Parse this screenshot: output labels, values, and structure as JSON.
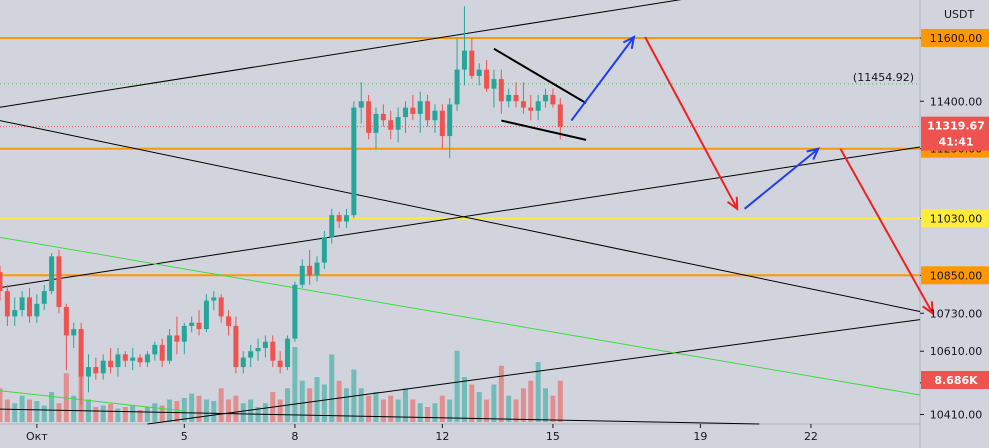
{
  "chart_data": {
    "type": "candlestick",
    "currency": "USDT",
    "y_axis": {
      "range": [
        10380,
        11720
      ],
      "ticks": [
        {
          "value": 11600,
          "label": "11600.00",
          "boxed": true,
          "color": "#ff9800"
        },
        {
          "value": 11400,
          "label": "11400.00",
          "boxed": false
        },
        {
          "value": 11250,
          "label": "11250.00",
          "boxed": true,
          "color": "#ff9800"
        },
        {
          "value": 11030,
          "label": "11030.00",
          "boxed": true,
          "color": "#ffeb3b"
        },
        {
          "value": 10850,
          "label": "10850.00",
          "boxed": true,
          "color": "#ff9800"
        },
        {
          "value": 10730,
          "label": "10730.00",
          "boxed": false
        },
        {
          "value": 10610,
          "label": "10610.00",
          "boxed": false
        },
        {
          "value": 10510,
          "label": "10510.00",
          "boxed": false
        },
        {
          "value": 10410,
          "label": "10410.00",
          "boxed": false
        }
      ],
      "current_price": {
        "value": 11319.67,
        "label": "11319.67",
        "countdown": "41:41"
      },
      "volume_label": "8.686K",
      "dotted_level": {
        "value": 11454.92,
        "label": "(11454.92)"
      }
    },
    "x_axis": {
      "range": [
        0,
        274
      ],
      "ticks": [
        {
          "label": "Окт",
          "x": 10
        },
        {
          "label": "5",
          "x": 50
        },
        {
          "label": "8",
          "x": 80
        },
        {
          "label": "12",
          "x": 120
        },
        {
          "label": "15",
          "x": 150
        },
        {
          "label": "19",
          "x": 190
        },
        {
          "label": "22",
          "x": 220
        }
      ]
    },
    "horizontal_levels": [
      {
        "price": 11600,
        "color": "#ff9800"
      },
      {
        "price": 11250,
        "color": "#ff9800"
      },
      {
        "price": 11030,
        "color": "#ffeb3b"
      },
      {
        "price": 10850,
        "color": "#ff9800"
      }
    ],
    "trend_lines": [
      {
        "points": [
          [
            0,
            11381
          ],
          [
            190,
            11731
          ]
        ],
        "color": "#000000"
      },
      {
        "points": [
          [
            0,
            10811
          ],
          [
            256,
            11267
          ]
        ],
        "color": "#000000"
      },
      {
        "points": [
          [
            0,
            11339
          ],
          [
            256,
            10720
          ]
        ],
        "color": "#000000"
      },
      {
        "points": [
          [
            40,
            10380
          ],
          [
            256,
            10720
          ]
        ],
        "color": "#000000"
      },
      {
        "points": [
          [
            0,
            10427
          ],
          [
            206,
            10380
          ]
        ],
        "color": "#000000"
      },
      {
        "points": [
          [
            0,
            10970
          ],
          [
            256,
            10459
          ]
        ],
        "color": "#3cdc3c"
      },
      {
        "points": [
          [
            0,
            10485
          ],
          [
            50,
            10421
          ]
        ],
        "color": "#3cdc3c"
      }
    ],
    "wedge": [
      {
        "points": [
          [
            134,
            11566
          ],
          [
            159,
            11394
          ]
        ]
      },
      {
        "points": [
          [
            136,
            11339
          ],
          [
            159,
            11278
          ]
        ]
      }
    ],
    "projections": [
      {
        "points": [
          [
            155,
            11339
          ],
          [
            172,
            11603
          ]
        ],
        "color": "#1f3cf2"
      },
      {
        "points": [
          [
            175,
            11603
          ],
          [
            200,
            11060
          ]
        ],
        "color": "#ef2121"
      },
      {
        "points": [
          [
            202,
            11060
          ],
          [
            222,
            11250
          ]
        ],
        "color": "#1f3cf2"
      },
      {
        "points": [
          [
            228,
            11250
          ],
          [
            253,
            10730
          ]
        ],
        "color": "#ef2121"
      }
    ],
    "candles": [
      [
        0,
        10860,
        10880,
        10770,
        10800
      ],
      [
        2,
        10800,
        10820,
        10690,
        10720
      ],
      [
        4,
        10720,
        10780,
        10690,
        10740
      ],
      [
        6,
        10740,
        10800,
        10720,
        10780
      ],
      [
        8,
        10780,
        10810,
        10700,
        10720
      ],
      [
        10,
        10720,
        10790,
        10700,
        10760
      ],
      [
        12,
        10760,
        10820,
        10740,
        10800
      ],
      [
        14,
        10800,
        10920,
        10790,
        10910
      ],
      [
        16,
        10910,
        10930,
        10730,
        10750
      ],
      [
        18,
        10750,
        10760,
        10550,
        10660
      ],
      [
        20,
        10660,
        10700,
        10620,
        10680
      ],
      [
        22,
        10680,
        10700,
        10440,
        10530
      ],
      [
        24,
        10530,
        10600,
        10480,
        10560
      ],
      [
        26,
        10560,
        10590,
        10520,
        10540
      ],
      [
        28,
        10540,
        10600,
        10520,
        10580
      ],
      [
        30,
        10580,
        10620,
        10540,
        10560
      ],
      [
        32,
        10560,
        10620,
        10530,
        10600
      ],
      [
        34,
        10600,
        10610,
        10560,
        10580
      ],
      [
        36,
        10580,
        10620,
        10550,
        10590
      ],
      [
        38,
        10590,
        10600,
        10560,
        10575
      ],
      [
        40,
        10575,
        10610,
        10560,
        10600
      ],
      [
        42,
        10600,
        10640,
        10580,
        10630
      ],
      [
        44,
        10630,
        10650,
        10560,
        10580
      ],
      [
        46,
        10580,
        10680,
        10570,
        10660
      ],
      [
        48,
        10660,
        10720,
        10600,
        10640
      ],
      [
        50,
        10640,
        10700,
        10600,
        10690
      ],
      [
        52,
        10690,
        10720,
        10670,
        10700
      ],
      [
        54,
        10700,
        10740,
        10660,
        10680
      ],
      [
        56,
        10680,
        10790,
        10670,
        10770
      ],
      [
        58,
        10770,
        10800,
        10740,
        10780
      ],
      [
        60,
        10780,
        10790,
        10700,
        10720
      ],
      [
        62,
        10720,
        10740,
        10660,
        10690
      ],
      [
        64,
        10690,
        10720,
        10540,
        10560
      ],
      [
        66,
        10560,
        10610,
        10540,
        10590
      ],
      [
        68,
        10590,
        10630,
        10560,
        10610
      ],
      [
        70,
        10610,
        10650,
        10580,
        10620
      ],
      [
        72,
        10620,
        10660,
        10590,
        10640
      ],
      [
        74,
        10640,
        10660,
        10560,
        10580
      ],
      [
        76,
        10580,
        10610,
        10540,
        10560
      ],
      [
        78,
        10560,
        10660,
        10550,
        10650
      ],
      [
        80,
        10650,
        10830,
        10640,
        10820
      ],
      [
        82,
        10820,
        10900,
        10810,
        10880
      ],
      [
        84,
        10880,
        10930,
        10820,
        10850
      ],
      [
        86,
        10850,
        10910,
        10830,
        10890
      ],
      [
        88,
        10890,
        10990,
        10870,
        10970
      ],
      [
        90,
        10970,
        11060,
        10950,
        11040
      ],
      [
        92,
        11040,
        11050,
        11000,
        11020
      ],
      [
        94,
        11020,
        11060,
        11000,
        11040
      ],
      [
        96,
        11040,
        11400,
        11030,
        11380
      ],
      [
        98,
        11380,
        11460,
        11330,
        11400
      ],
      [
        100,
        11400,
        11420,
        11280,
        11300
      ],
      [
        102,
        11300,
        11380,
        11250,
        11360
      ],
      [
        104,
        11360,
        11390,
        11320,
        11340
      ],
      [
        106,
        11340,
        11370,
        11280,
        11310
      ],
      [
        108,
        11310,
        11380,
        11270,
        11350
      ],
      [
        110,
        11350,
        11400,
        11300,
        11380
      ],
      [
        112,
        11380,
        11420,
        11340,
        11360
      ],
      [
        114,
        11360,
        11430,
        11300,
        11400
      ],
      [
        116,
        11400,
        11420,
        11320,
        11340
      ],
      [
        118,
        11340,
        11390,
        11300,
        11370
      ],
      [
        120,
        11370,
        11390,
        11250,
        11290
      ],
      [
        122,
        11290,
        11410,
        11220,
        11390
      ],
      [
        124,
        11390,
        11600,
        11370,
        11500
      ],
      [
        126,
        11500,
        11700,
        11450,
        11560
      ],
      [
        128,
        11560,
        11600,
        11470,
        11480
      ],
      [
        130,
        11480,
        11520,
        11450,
        11500
      ],
      [
        132,
        11500,
        11530,
        11430,
        11440
      ],
      [
        134,
        11440,
        11500,
        11380,
        11470
      ],
      [
        136,
        11470,
        11500,
        11360,
        11400
      ],
      [
        138,
        11400,
        11440,
        11380,
        11420
      ],
      [
        140,
        11420,
        11460,
        11380,
        11400
      ],
      [
        142,
        11400,
        11460,
        11360,
        11380
      ],
      [
        144,
        11380,
        11420,
        11340,
        11370
      ],
      [
        146,
        11370,
        11420,
        11340,
        11400
      ],
      [
        148,
        11400,
        11440,
        11380,
        11420
      ],
      [
        150,
        11420,
        11440,
        11380,
        11390
      ],
      [
        152,
        11390,
        11410,
        11280,
        11320
      ]
    ],
    "volumes": [
      [
        0,
        0.45
      ],
      [
        2,
        0.3
      ],
      [
        4,
        0.25
      ],
      [
        6,
        0.35
      ],
      [
        8,
        0.3
      ],
      [
        10,
        0.28
      ],
      [
        12,
        0.22
      ],
      [
        14,
        0.4
      ],
      [
        16,
        0.25
      ],
      [
        18,
        0.65
      ],
      [
        20,
        0.35
      ],
      [
        22,
        0.85
      ],
      [
        24,
        0.3
      ],
      [
        26,
        0.2
      ],
      [
        28,
        0.22
      ],
      [
        30,
        0.24
      ],
      [
        32,
        0.18
      ],
      [
        34,
        0.2
      ],
      [
        36,
        0.22
      ],
      [
        38,
        0.16
      ],
      [
        40,
        0.2
      ],
      [
        42,
        0.25
      ],
      [
        44,
        0.22
      ],
      [
        46,
        0.3
      ],
      [
        48,
        0.28
      ],
      [
        50,
        0.32
      ],
      [
        52,
        0.38
      ],
      [
        54,
        0.35
      ],
      [
        56,
        0.3
      ],
      [
        58,
        0.28
      ],
      [
        60,
        0.45
      ],
      [
        62,
        0.3
      ],
      [
        64,
        0.35
      ],
      [
        66,
        0.25
      ],
      [
        68,
        0.3
      ],
      [
        70,
        0.2
      ],
      [
        72,
        0.25
      ],
      [
        74,
        0.4
      ],
      [
        76,
        0.3
      ],
      [
        78,
        0.45
      ],
      [
        80,
        1.0
      ],
      [
        82,
        0.55
      ],
      [
        84,
        0.45
      ],
      [
        86,
        0.6
      ],
      [
        88,
        0.5
      ],
      [
        90,
        0.9
      ],
      [
        92,
        0.55
      ],
      [
        94,
        0.45
      ],
      [
        96,
        0.7
      ],
      [
        98,
        0.45
      ],
      [
        100,
        0.35
      ],
      [
        102,
        0.4
      ],
      [
        104,
        0.3
      ],
      [
        106,
        0.35
      ],
      [
        108,
        0.3
      ],
      [
        110,
        0.45
      ],
      [
        112,
        0.3
      ],
      [
        114,
        0.25
      ],
      [
        116,
        0.2
      ],
      [
        118,
        0.25
      ],
      [
        120,
        0.35
      ],
      [
        122,
        0.3
      ],
      [
        124,
        0.95
      ],
      [
        126,
        0.6
      ],
      [
        128,
        0.5
      ],
      [
        130,
        0.4
      ],
      [
        132,
        0.3
      ],
      [
        134,
        0.5
      ],
      [
        136,
        0.75
      ],
      [
        138,
        0.35
      ],
      [
        140,
        0.3
      ],
      [
        142,
        0.45
      ],
      [
        144,
        0.55
      ],
      [
        146,
        0.8
      ],
      [
        148,
        0.45
      ],
      [
        150,
        0.35
      ],
      [
        152,
        0.55
      ]
    ]
  }
}
